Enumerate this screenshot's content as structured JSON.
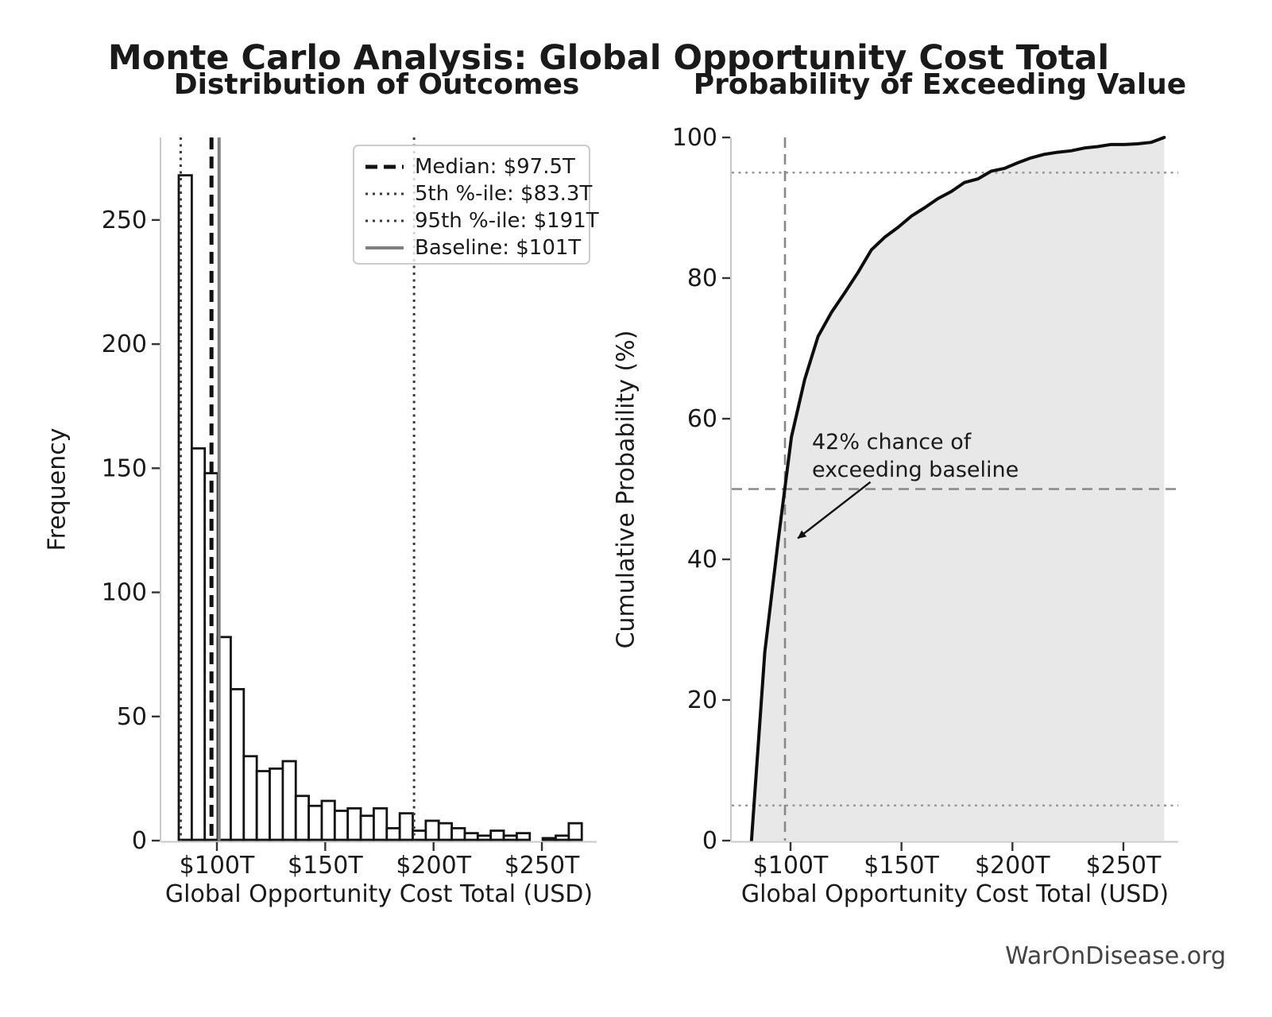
{
  "page": {
    "title": "Monte Carlo Analysis: Global Opportunity Cost Total",
    "footer": "WarOnDisease.org"
  },
  "chart_data": [
    {
      "type": "bar",
      "role": "histogram",
      "title": "Distribution of Outcomes",
      "xlabel": "Global Opportunity Cost Total (USD)",
      "ylabel": "Frequency",
      "n_samples": 1000,
      "bin_start_T": 82.4,
      "bin_width_T": 6,
      "counts": [
        268,
        158,
        148,
        82,
        61,
        34,
        28,
        29,
        32,
        18,
        14,
        16,
        12,
        13,
        10,
        13,
        5,
        11,
        4,
        8,
        7,
        5,
        3,
        2,
        4,
        2,
        3,
        0,
        1,
        2,
        7
      ],
      "xlim": [
        74,
        275
      ],
      "ylim": [
        0,
        283
      ],
      "xtick_values": [
        100,
        150,
        200,
        250
      ],
      "xtick_labels": [
        "$100T",
        "$150T",
        "$200T",
        "$250T"
      ],
      "ytick_values": [
        0,
        50,
        100,
        150,
        200,
        250
      ],
      "ytick_labels": [
        "0",
        "50",
        "100",
        "150",
        "200",
        "250"
      ],
      "grid": false,
      "bar_fill": "#ffffff",
      "bar_edge": "#141414",
      "ref_lines": [
        {
          "name": "median",
          "value_T": 97.5,
          "style": "dashed",
          "color": "#111111",
          "label": "Median: $97.5T"
        },
        {
          "name": "p5",
          "value_T": 83.3,
          "style": "dotted",
          "color": "#3a3a3a",
          "label": "5th %-ile: $83.3T"
        },
        {
          "name": "p95",
          "value_T": 191,
          "style": "dotted",
          "color": "#3a3a3a",
          "label": "95th %-ile: $191T"
        },
        {
          "name": "baseline",
          "value_T": 101,
          "style": "solid",
          "color": "#808080",
          "label": "Baseline: $101T"
        }
      ],
      "legend_position": "upper right"
    },
    {
      "type": "line",
      "role": "cumulative-distribution",
      "title": "Probability of Exceeding Value",
      "xlabel": "Global Opportunity Cost Total (USD)",
      "ylabel": "Cumulative Probability (%)",
      "x_T": [
        82.4,
        88.4,
        94.4,
        100.4,
        106.4,
        112.4,
        118.4,
        124.4,
        130.4,
        136.4,
        142.4,
        148.4,
        154.4,
        160.4,
        166.4,
        172.4,
        178.4,
        184.4,
        190.4,
        196.4,
        202.4,
        208.4,
        214.4,
        220.4,
        226.4,
        232.4,
        238.4,
        244.4,
        250.4,
        256.4,
        262.4,
        268.4
      ],
      "y_pct": [
        0,
        26.8,
        42.6,
        57.4,
        65.6,
        71.7,
        75.1,
        77.9,
        80.8,
        84.0,
        85.8,
        87.2,
        88.8,
        90.0,
        91.3,
        92.3,
        93.6,
        94.1,
        95.2,
        95.6,
        96.4,
        97.1,
        97.6,
        97.9,
        98.1,
        98.5,
        98.7,
        99.0,
        99.0,
        99.1,
        99.3,
        100.0
      ],
      "xlim": [
        74,
        275
      ],
      "ylim": [
        0,
        100
      ],
      "xtick_values": [
        100,
        150,
        200,
        250
      ],
      "xtick_labels": [
        "$100T",
        "$150T",
        "$200T",
        "$250T"
      ],
      "ytick_values": [
        0,
        20,
        40,
        60,
        80,
        100
      ],
      "ytick_labels": [
        "0",
        "20",
        "40",
        "60",
        "80",
        "100"
      ],
      "grid": false,
      "line_color": "#0d0d0d",
      "area_fill": "#e8e8e8",
      "h_ref_lines": [
        {
          "value_pct": 95,
          "style": "dotted",
          "color": "#999999"
        },
        {
          "value_pct": 50,
          "style": "dashed",
          "color": "#888888"
        },
        {
          "value_pct": 5,
          "style": "dotted",
          "color": "#999999"
        }
      ],
      "v_ref_line": {
        "value_T": 97.5,
        "style": "dashed",
        "color": "#888888"
      },
      "annotation": {
        "text": "42% chance of\nexceeding baseline",
        "arrow_from": {
          "x_T": 136,
          "y_pct": 51
        },
        "arrow_to": {
          "x_T": 103.3,
          "y_pct": 43
        }
      }
    }
  ]
}
